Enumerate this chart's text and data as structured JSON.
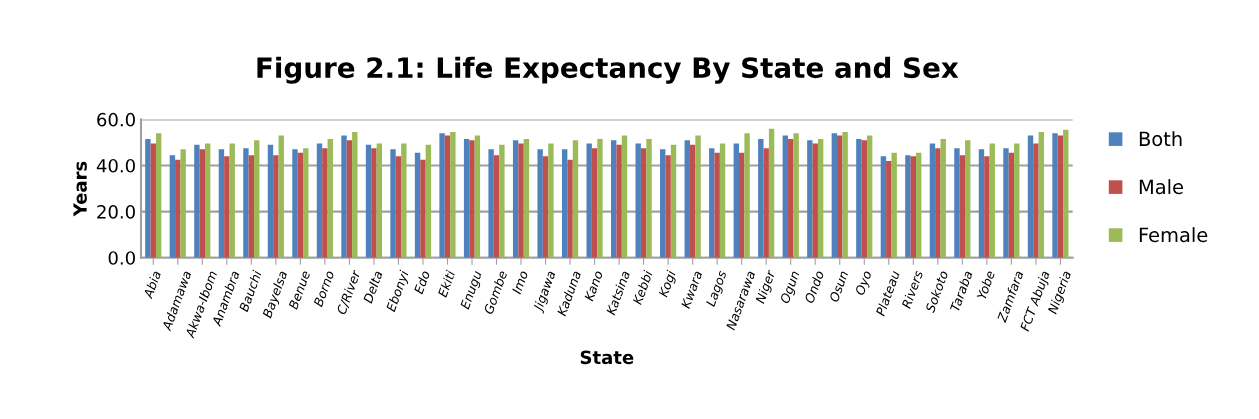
{
  "chart_data": {
    "type": "bar",
    "title": "Figure 2.1: Life Expectancy By State and Sex",
    "xlabel": "State",
    "ylabel": "Years",
    "categories": [
      "Abia",
      "Adamawa",
      "Akwa-Ibom",
      "Anambra",
      "Bauchi",
      "Bayelsa",
      "Benue",
      "Borno",
      "C/River",
      "Delta",
      "Ebonyi",
      "Edo",
      "Ekiti",
      "Enugu",
      "Gombe",
      "Imo",
      "Jigawa",
      "Kaduna",
      "Kano",
      "Katsina",
      "Kebbi",
      "Kogi",
      "Kwara",
      "Lagos",
      "Nasarawa",
      "Niger",
      "Ogun",
      "Ondo",
      "Osun",
      "Oyo",
      "Plateau",
      "Rivers",
      "Sokoto",
      "Taraba",
      "Yobe",
      "Zamfara",
      "FCT Abuja",
      "Nigeria"
    ],
    "series": [
      {
        "name": "Both",
        "color": "#4f81bd",
        "values": [
          51.5,
          44.5,
          49,
          47,
          47.5,
          49,
          47,
          49.5,
          53,
          49,
          47,
          45.5,
          54,
          51.5,
          47,
          51,
          47,
          47,
          49.5,
          51,
          49.5,
          47,
          51,
          47.5,
          49.5,
          51.5,
          53,
          51,
          54,
          51.5,
          44,
          44.5,
          49.5,
          47.5,
          47,
          47.5,
          53,
          54
        ]
      },
      {
        "name": "Male",
        "color": "#c0504d",
        "values": [
          49.5,
          42.5,
          47,
          44,
          44.5,
          44.5,
          45.5,
          47.5,
          51,
          47.5,
          44,
          42.5,
          53,
          51,
          44.5,
          49.5,
          44,
          42.5,
          47.5,
          49,
          47.5,
          44.5,
          49,
          45.5,
          45.5,
          47.5,
          51.5,
          49.5,
          53,
          51,
          42,
          44,
          47.5,
          44.5,
          44,
          45.5,
          49.5,
          53
        ]
      },
      {
        "name": "Female",
        "color": "#9bbb59",
        "values": [
          54,
          47,
          49.5,
          49.5,
          51,
          53,
          47.5,
          51.5,
          54.5,
          49.5,
          49.5,
          49,
          54.5,
          53,
          49,
          51.5,
          49.5,
          51,
          51.5,
          53,
          51.5,
          49,
          53,
          49.5,
          54,
          56,
          54,
          51.5,
          54.5,
          53,
          45.5,
          45.5,
          51.5,
          51,
          49.5,
          49.5,
          54.5,
          55.5
        ]
      }
    ],
    "ylim": [
      0,
      60
    ],
    "yticks": [
      {
        "value": 0,
        "label": "0.0"
      },
      {
        "value": 20,
        "label": "20.0"
      },
      {
        "value": 40,
        "label": "40.0"
      },
      {
        "value": 60,
        "label": "60.0"
      }
    ],
    "grid": "y",
    "legend": "right"
  }
}
